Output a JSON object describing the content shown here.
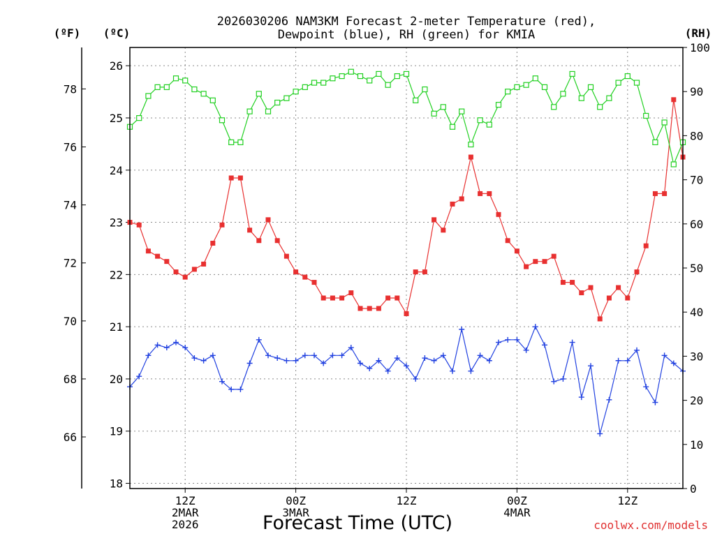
{
  "chart_data": {
    "type": "line",
    "title_line1": "2026030206 NAM3KM Forecast 2-meter Temperature (red),",
    "title_line2": "Dewpoint (blue), RH (green) for KMIA",
    "xlabel": "Forecast Time (UTC)",
    "credit": "coolwx.com/models",
    "unit_f": "(ºF)",
    "unit_c": "(ºC)",
    "unit_rh": "(RH)",
    "start_hour": 6,
    "end_hour": 66,
    "grid": true,
    "left_axis_c": {
      "range": [
        17.9,
        26.35
      ],
      "ticks": [
        "18",
        "19",
        "20",
        "21",
        "22",
        "23",
        "24",
        "25",
        "26"
      ]
    },
    "far_left_axis_f": {
      "ticks": [
        "66",
        "68",
        "70",
        "72",
        "74",
        "76",
        "78"
      ]
    },
    "right_axis_rh": {
      "range": [
        0,
        100
      ],
      "ticks": [
        "0",
        "10",
        "20",
        "30",
        "40",
        "50",
        "60",
        "70",
        "80",
        "90",
        "100"
      ]
    },
    "x_ticks": [
      {
        "hour": 12,
        "lines": [
          "12Z",
          "2MAR",
          "2026"
        ]
      },
      {
        "hour": 24,
        "lines": [
          "00Z",
          "3MAR"
        ]
      },
      {
        "hour": 36,
        "lines": [
          "12Z"
        ]
      },
      {
        "hour": 48,
        "lines": [
          "00Z",
          "4MAR"
        ]
      },
      {
        "hour": 60,
        "lines": [
          "12Z"
        ]
      }
    ],
    "series": [
      {
        "name": "2-meter Temperature",
        "unit": "C",
        "axis": "left",
        "color": "#e83030",
        "marker": "filled-square",
        "values": [
          23.0,
          22.95,
          22.45,
          22.35,
          22.25,
          22.05,
          21.95,
          22.1,
          22.2,
          22.6,
          22.95,
          23.85,
          23.85,
          22.85,
          22.65,
          23.05,
          22.65,
          22.35,
          22.05,
          21.95,
          21.85,
          21.55,
          21.55,
          21.55,
          21.65,
          21.35,
          21.35,
          21.35,
          21.55,
          21.55,
          21.25,
          22.05,
          22.05,
          23.05,
          22.85,
          23.35,
          23.45,
          24.25,
          23.55,
          23.55,
          23.15,
          22.65,
          22.45,
          22.15,
          22.25,
          22.25,
          22.35,
          21.85,
          21.85,
          21.65,
          21.75,
          21.15,
          21.55,
          21.75,
          21.55,
          22.05,
          22.55,
          23.55,
          23.55,
          25.35,
          24.25
        ]
      },
      {
        "name": "Dewpoint",
        "unit": "C",
        "axis": "left",
        "color": "#2040e0",
        "marker": "plus",
        "values": [
          19.85,
          20.05,
          20.45,
          20.65,
          20.6,
          20.7,
          20.6,
          20.4,
          20.35,
          20.45,
          19.95,
          19.8,
          19.8,
          20.3,
          20.75,
          20.45,
          20.4,
          20.35,
          20.35,
          20.45,
          20.45,
          20.3,
          20.45,
          20.45,
          20.6,
          20.3,
          20.2,
          20.35,
          20.15,
          20.4,
          20.25,
          20.0,
          20.4,
          20.35,
          20.45,
          20.15,
          20.95,
          20.15,
          20.45,
          20.35,
          20.7,
          20.75,
          20.75,
          20.55,
          21.0,
          20.65,
          19.95,
          20.0,
          20.7,
          19.65,
          20.25,
          18.95,
          19.6,
          20.35,
          20.35,
          20.55,
          19.85,
          19.55,
          20.45,
          20.3,
          20.15
        ]
      },
      {
        "name": "RH",
        "unit": "%",
        "axis": "right",
        "color": "#20d020",
        "marker": "open-square",
        "values": [
          82,
          84,
          89,
          91,
          91,
          93,
          92.5,
          90.5,
          89.5,
          88,
          83.5,
          78.5,
          78.5,
          85.5,
          89.5,
          85.5,
          87.5,
          88.5,
          90,
          91,
          92,
          92,
          93,
          93.5,
          94.5,
          93.5,
          92.5,
          94,
          91.5,
          93.5,
          94,
          88,
          90.5,
          85,
          86.5,
          82,
          85.5,
          78,
          83.5,
          82.5,
          87,
          90,
          91,
          91.5,
          93,
          91,
          86.5,
          89.5,
          94,
          88.5,
          91,
          86.5,
          88.5,
          92,
          93.5,
          92,
          84.5,
          78.5,
          83,
          73.5,
          78.5
        ]
      }
    ]
  }
}
